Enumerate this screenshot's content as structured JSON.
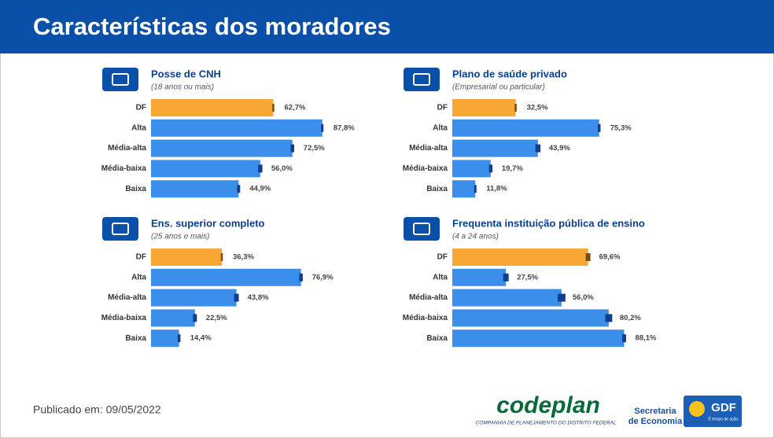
{
  "header": {
    "title": "Características dos moradores"
  },
  "footer": {
    "published": "Publicado em: 09/05/2022",
    "codeplan": "codeplan",
    "codeplan_sub": "COMPANHIA DE PLANEJAMENTO DO DISTRITO FEDERAL",
    "secretaria": [
      "Secretaria",
      "de Economia"
    ],
    "gdf": "GDF",
    "gdf_sub": "É tempo de ação."
  },
  "chart_data": [
    {
      "type": "bar",
      "orientation": "horizontal",
      "title": "Posse de CNH",
      "subtitle": "(18 anos ou mais)",
      "categories": [
        "DF",
        "Alta",
        "Média-alta",
        "Média-baixa",
        "Baixa"
      ],
      "values": [
        62.7,
        87.8,
        72.5,
        56.0,
        44.9
      ],
      "value_labels": [
        "62,7%",
        "87,8%",
        "72,5%",
        "56,0%",
        "44,9%"
      ],
      "errors": [
        0.5,
        0.6,
        0.9,
        1.1,
        0.8
      ],
      "colors": [
        "#f7a733",
        "#3b8eea",
        "#3b8eea",
        "#3b8eea",
        "#3b8eea"
      ],
      "error_colors": [
        "#7a4a10",
        "#0f3f8f",
        "#0f3f8f",
        "#0f3f8f",
        "#0f3f8f"
      ],
      "xlim": [
        0,
        100
      ]
    },
    {
      "type": "bar",
      "orientation": "horizontal",
      "title": "Plano de saúde privado",
      "subtitle": "(Empresarial ou particular)",
      "categories": [
        "DF",
        "Alta",
        "Média-alta",
        "Média-baixa",
        "Baixa"
      ],
      "values": [
        32.5,
        75.3,
        43.9,
        19.7,
        11.8
      ],
      "value_labels": [
        "32,5%",
        "75,3%",
        "43,9%",
        "19,7%",
        "11,8%"
      ],
      "errors": [
        0.5,
        0.7,
        1.3,
        0.9,
        0.6
      ],
      "colors": [
        "#f7a733",
        "#3b8eea",
        "#3b8eea",
        "#3b8eea",
        "#3b8eea"
      ],
      "error_colors": [
        "#7a4a10",
        "#0f3f8f",
        "#0f3f8f",
        "#0f3f8f",
        "#0f3f8f"
      ],
      "xlim": [
        0,
        100
      ]
    },
    {
      "type": "bar",
      "orientation": "horizontal",
      "title": "Ens. superior completo",
      "subtitle": "(25 anos e mais)",
      "categories": [
        "DF",
        "Alta",
        "Média-alta",
        "Média-baixa",
        "Baixa"
      ],
      "values": [
        36.3,
        76.9,
        43.8,
        22.5,
        14.4
      ],
      "value_labels": [
        "36,3%",
        "76,9%",
        "43,8%",
        "22,5%",
        "14,4%"
      ],
      "errors": [
        0.5,
        0.9,
        1.2,
        1.0,
        0.7
      ],
      "colors": [
        "#f7a733",
        "#3b8eea",
        "#3b8eea",
        "#3b8eea",
        "#3b8eea"
      ],
      "error_colors": [
        "#7a4a10",
        "#0f3f8f",
        "#0f3f8f",
        "#0f3f8f",
        "#0f3f8f"
      ],
      "xlim": [
        0,
        100
      ]
    },
    {
      "type": "bar",
      "orientation": "horizontal",
      "title": "Frequenta instituição pública de ensino",
      "subtitle": "(4 a 24 anos)",
      "categories": [
        "DF",
        "Alta",
        "Média-alta",
        "Média-baixa",
        "Baixa"
      ],
      "values": [
        69.6,
        27.5,
        56.0,
        80.2,
        88.1
      ],
      "value_labels": [
        "69,6%",
        "27,5%",
        "56,0%",
        "80,2%",
        "88,1%"
      ],
      "errors": [
        1.2,
        1.4,
        2.0,
        1.8,
        1.0
      ],
      "colors": [
        "#f7a733",
        "#3b8eea",
        "#3b8eea",
        "#3b8eea",
        "#3b8eea"
      ],
      "error_colors": [
        "#7a4a10",
        "#0f3f8f",
        "#0f3f8f",
        "#0f3f8f",
        "#0f3f8f"
      ],
      "xlim": [
        0,
        100
      ]
    }
  ]
}
